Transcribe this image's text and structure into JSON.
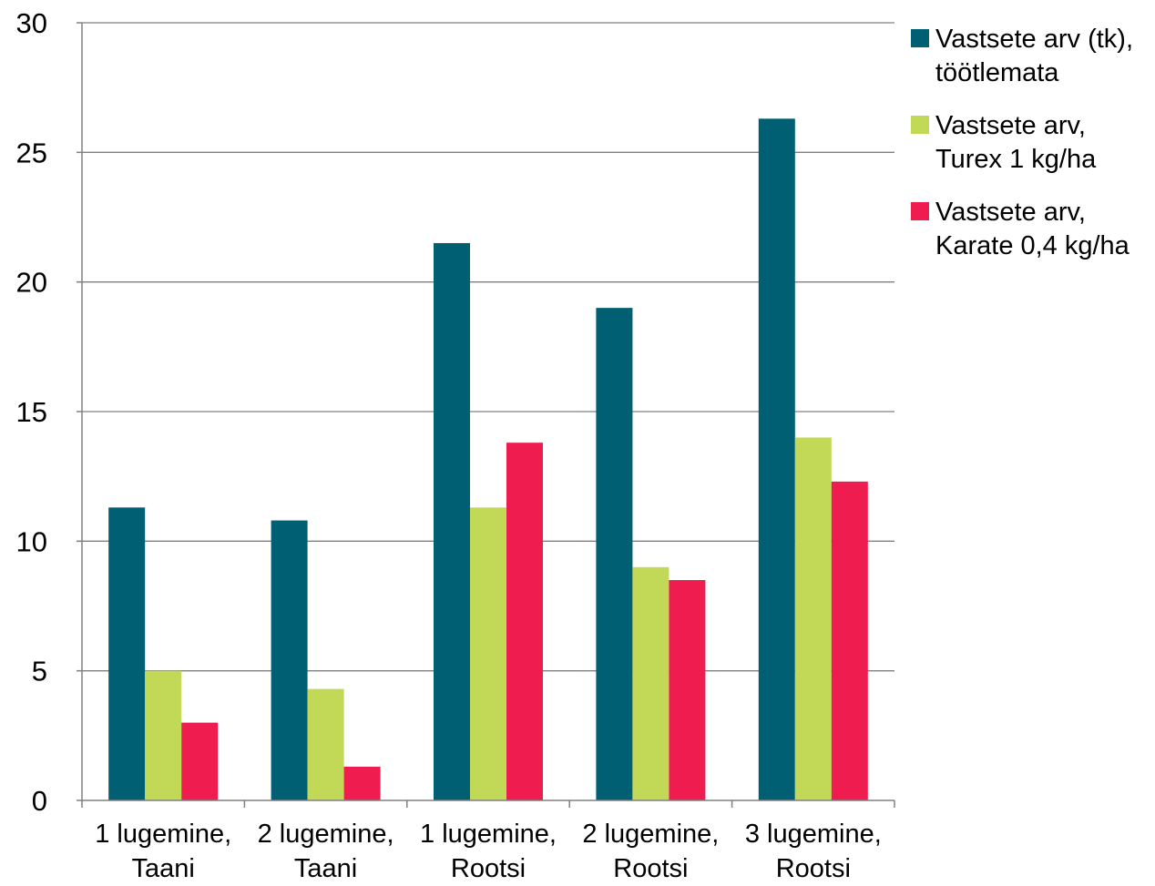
{
  "chart_data": {
    "type": "bar",
    "categories": [
      [
        "1 lugemine,",
        "Taani"
      ],
      [
        "2 lugemine,",
        "Taani"
      ],
      [
        "1 lugemine,",
        "Rootsi"
      ],
      [
        "2 lugemine,",
        "Rootsi"
      ],
      [
        "3 lugemine,",
        "Rootsi"
      ]
    ],
    "series": [
      {
        "name": [
          "Vastsete arv (tk),",
          "töötlemata"
        ],
        "color": "#005f73",
        "values": [
          11.3,
          10.8,
          21.5,
          19.0,
          26.3
        ]
      },
      {
        "name": [
          "Vastsete arv,",
          "Turex 1 kg/ha"
        ],
        "color": "#c2d957",
        "values": [
          5.0,
          4.3,
          11.3,
          9.0,
          14.0
        ]
      },
      {
        "name": [
          "Vastsete arv,",
          "Karate 0,4 kg/ha"
        ],
        "color": "#ee1c4f",
        "values": [
          3.0,
          1.3,
          13.8,
          8.5,
          12.3
        ]
      }
    ],
    "ylim": [
      0,
      30
    ],
    "yticks": [
      0,
      5,
      10,
      15,
      20,
      25,
      30
    ],
    "grid": true,
    "legend_position": "right",
    "title": "",
    "xlabel": "",
    "ylabel": "",
    "grid_color": "#808080",
    "axis_color": "#808080"
  }
}
